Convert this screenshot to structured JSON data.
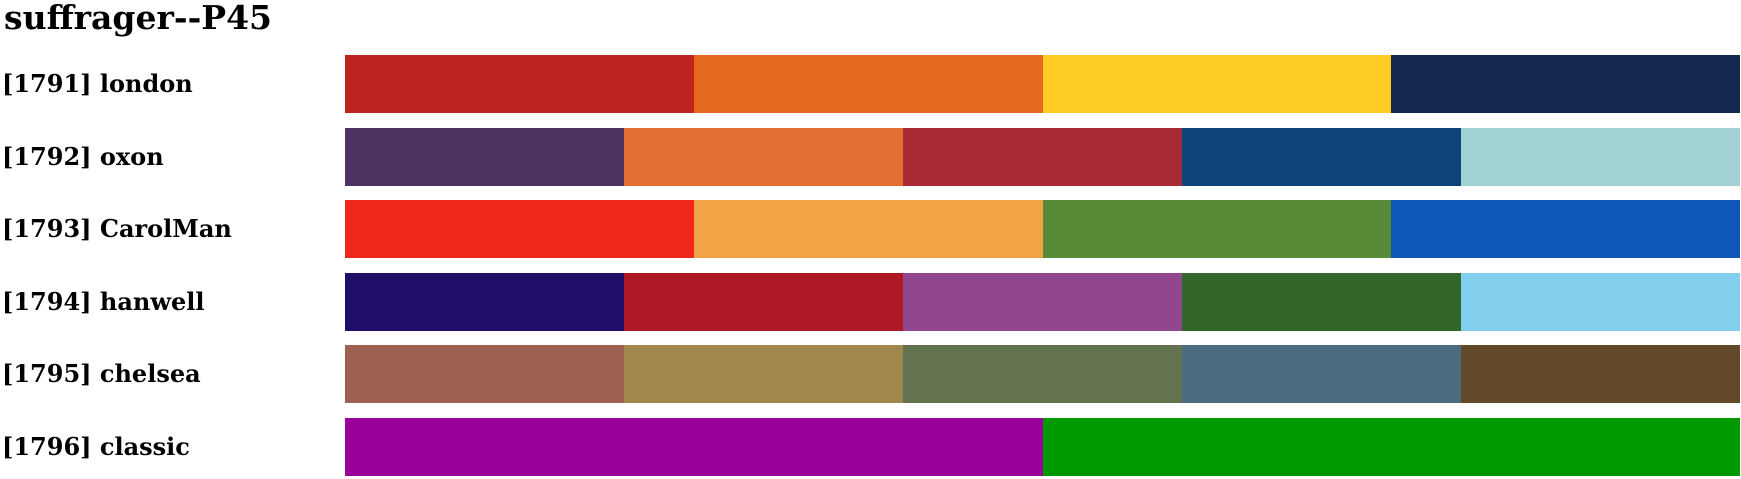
{
  "title": "suffrager--P45",
  "palettes": [
    {
      "label": "[1791] london",
      "colors": [
        "#bf2520",
        "#e56a20",
        "#fecc22",
        "#15284f"
      ]
    },
    {
      "label": "[1792] oxon",
      "colors": [
        "#4d3262",
        "#e46f33",
        "#a92a37",
        "#0d4377",
        "#a2d1d3"
      ]
    },
    {
      "label": "[1793] CarolMan",
      "colors": [
        "#ee281b",
        "#f2a345",
        "#598b36",
        "#0f57b9"
      ]
    },
    {
      "label": "[1794] hanwell",
      "colors": [
        "#200e69",
        "#ae1825",
        "#91468d",
        "#336629",
        "#82cfed"
      ]
    },
    {
      "label": "[1795] chelsea",
      "colors": [
        "#9e6253",
        "#a0884d",
        "#63734f",
        "#4c6c7f",
        "#624929"
      ]
    },
    {
      "label": "[1796] classic",
      "colors": [
        "#990099",
        "#009a00"
      ]
    }
  ]
}
